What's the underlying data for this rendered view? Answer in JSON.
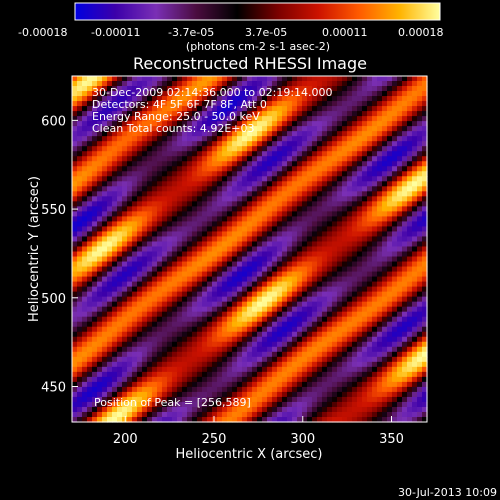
{
  "chart_data": {
    "type": "heatmap",
    "title": "Reconstructed RHESSI Image",
    "xlabel": "Heliocentric X (arcsec)",
    "ylabel": "Heliocentric Y (arcsec)",
    "xlim": [
      170,
      370
    ],
    "ylim": [
      430,
      625
    ],
    "x_ticks": [
      200,
      250,
      300,
      350
    ],
    "y_ticks": [
      450,
      500,
      550,
      600
    ],
    "colorbar": {
      "label": "(photons cm-2 s-1 asec-2)",
      "ticks": [
        "-0.00018",
        "-0.00011",
        "-3.7e-05",
        "3.7e-05",
        "0.00011",
        "0.00018"
      ],
      "min": -0.00018,
      "max": 0.00018,
      "colors": [
        "#0000e0",
        "#3c00aa",
        "#7a2fb5",
        "#4a0c3e",
        "#000000",
        "#7a0000",
        "#cc1200",
        "#ff5a00",
        "#ffb300",
        "#ffffa0"
      ]
    },
    "info_lines": [
      "30-Dec-2009 02:14:36.000 to 02:19:14.000",
      "Detectors: 4F 5F 6F 7F 8F, Att 0",
      "Energy Range: 25.0 - 50.0 keV",
      "Clean     Total counts: 4.92E+03"
    ],
    "peak_label": "Position of Peak = [256,589]",
    "peak_position": [
      256,
      589
    ],
    "timestamp": "30-Jul-2013 10:09"
  }
}
